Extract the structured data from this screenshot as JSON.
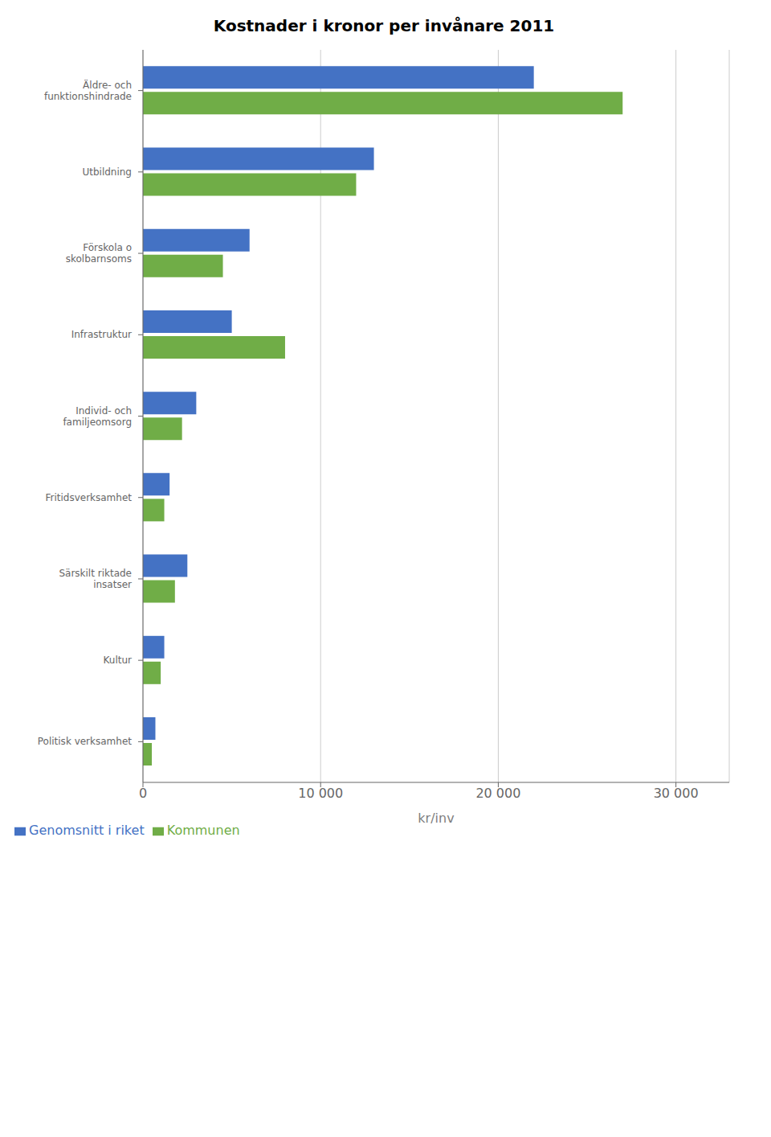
{
  "chart_data": {
    "type": "bar",
    "orientation": "horizontal",
    "title": "Kostnader i kronor per invånare 2011",
    "xlabel": "kr/inv",
    "categories": [
      "Äldre- och\nfunktionshindrade",
      "Utbildning",
      "Förskola o\nskolbarnsoms",
      "Infrastruktur",
      "Individ- och\nfamiljeomsorg",
      "Fritidsverksamhet",
      "Särskilt riktade\ninsatser",
      "Kultur",
      "Politisk verksamhet"
    ],
    "series": [
      {
        "name": "Genomsnitt i riket",
        "color": "#4472c4",
        "values": [
          22000,
          13000,
          6000,
          5000,
          3000,
          1500,
          2500,
          1200,
          700
        ]
      },
      {
        "name": "Kommunen",
        "color": "#70ad47",
        "values": [
          27000,
          12000,
          4500,
          8000,
          2200,
          1200,
          1800,
          1000,
          500
        ]
      }
    ],
    "xlim": [
      0,
      33000
    ],
    "xticks": [
      0,
      {
        "value": 10000,
        "label": "10 000"
      },
      {
        "value": 20000,
        "label": "20 000"
      },
      {
        "value": 30000,
        "label": "30 000"
      }
    ],
    "grid": true,
    "legend": "lower left"
  }
}
